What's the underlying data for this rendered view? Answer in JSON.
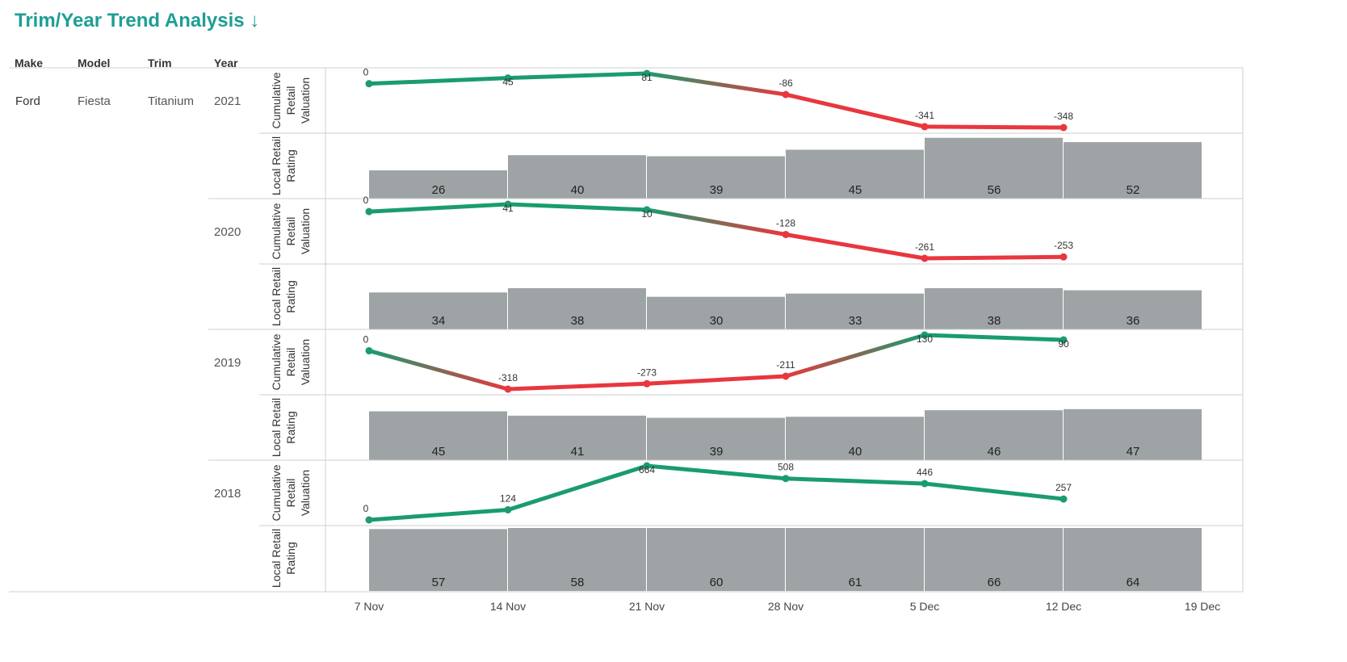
{
  "title": "Trim/Year Trend Analysis",
  "title_icon": "arrow-down-icon",
  "headers": {
    "make": "Make",
    "model": "Model",
    "trim": "Trim",
    "year": "Year"
  },
  "row": {
    "make": "Ford",
    "model": "Fiesta",
    "trim": "Titanium"
  },
  "colors": {
    "positive": "#1a9c6e",
    "negative": "#e8373e",
    "bar": "#9ea3a6",
    "title": "#1f9e94",
    "grid": "#cfcfcf"
  },
  "chart_data": {
    "type": "line+bar",
    "x_ticks": [
      "7 Nov",
      "14 Nov",
      "21 Nov",
      "28 Nov",
      "5 Dec",
      "12 Dec",
      "19 Dec"
    ],
    "measures": {
      "line": "Cumulative Retail Valuation",
      "bar": "Local Retail Rating"
    },
    "measure_titles": {
      "line": [
        "Cumulative",
        "Retail",
        "Valuation"
      ],
      "bar": [
        "Local Retail",
        "Rating"
      ]
    },
    "panels": [
      {
        "year": "2021",
        "valuation": [
          0,
          45,
          81,
          -86,
          -341,
          -348
        ],
        "rating": [
          26,
          40,
          39,
          45,
          56,
          52
        ]
      },
      {
        "year": "2020",
        "valuation": [
          0,
          41,
          10,
          -128,
          -261,
          -253
        ],
        "rating": [
          34,
          38,
          30,
          33,
          38,
          36
        ]
      },
      {
        "year": "2019",
        "valuation": [
          0,
          -318,
          -273,
          -211,
          130,
          90
        ],
        "rating": [
          45,
          41,
          39,
          40,
          46,
          47
        ]
      },
      {
        "year": "2018",
        "valuation": [
          0,
          124,
          664,
          508,
          446,
          257
        ],
        "rating": [
          57,
          58,
          60,
          61,
          66,
          64
        ]
      }
    ]
  }
}
